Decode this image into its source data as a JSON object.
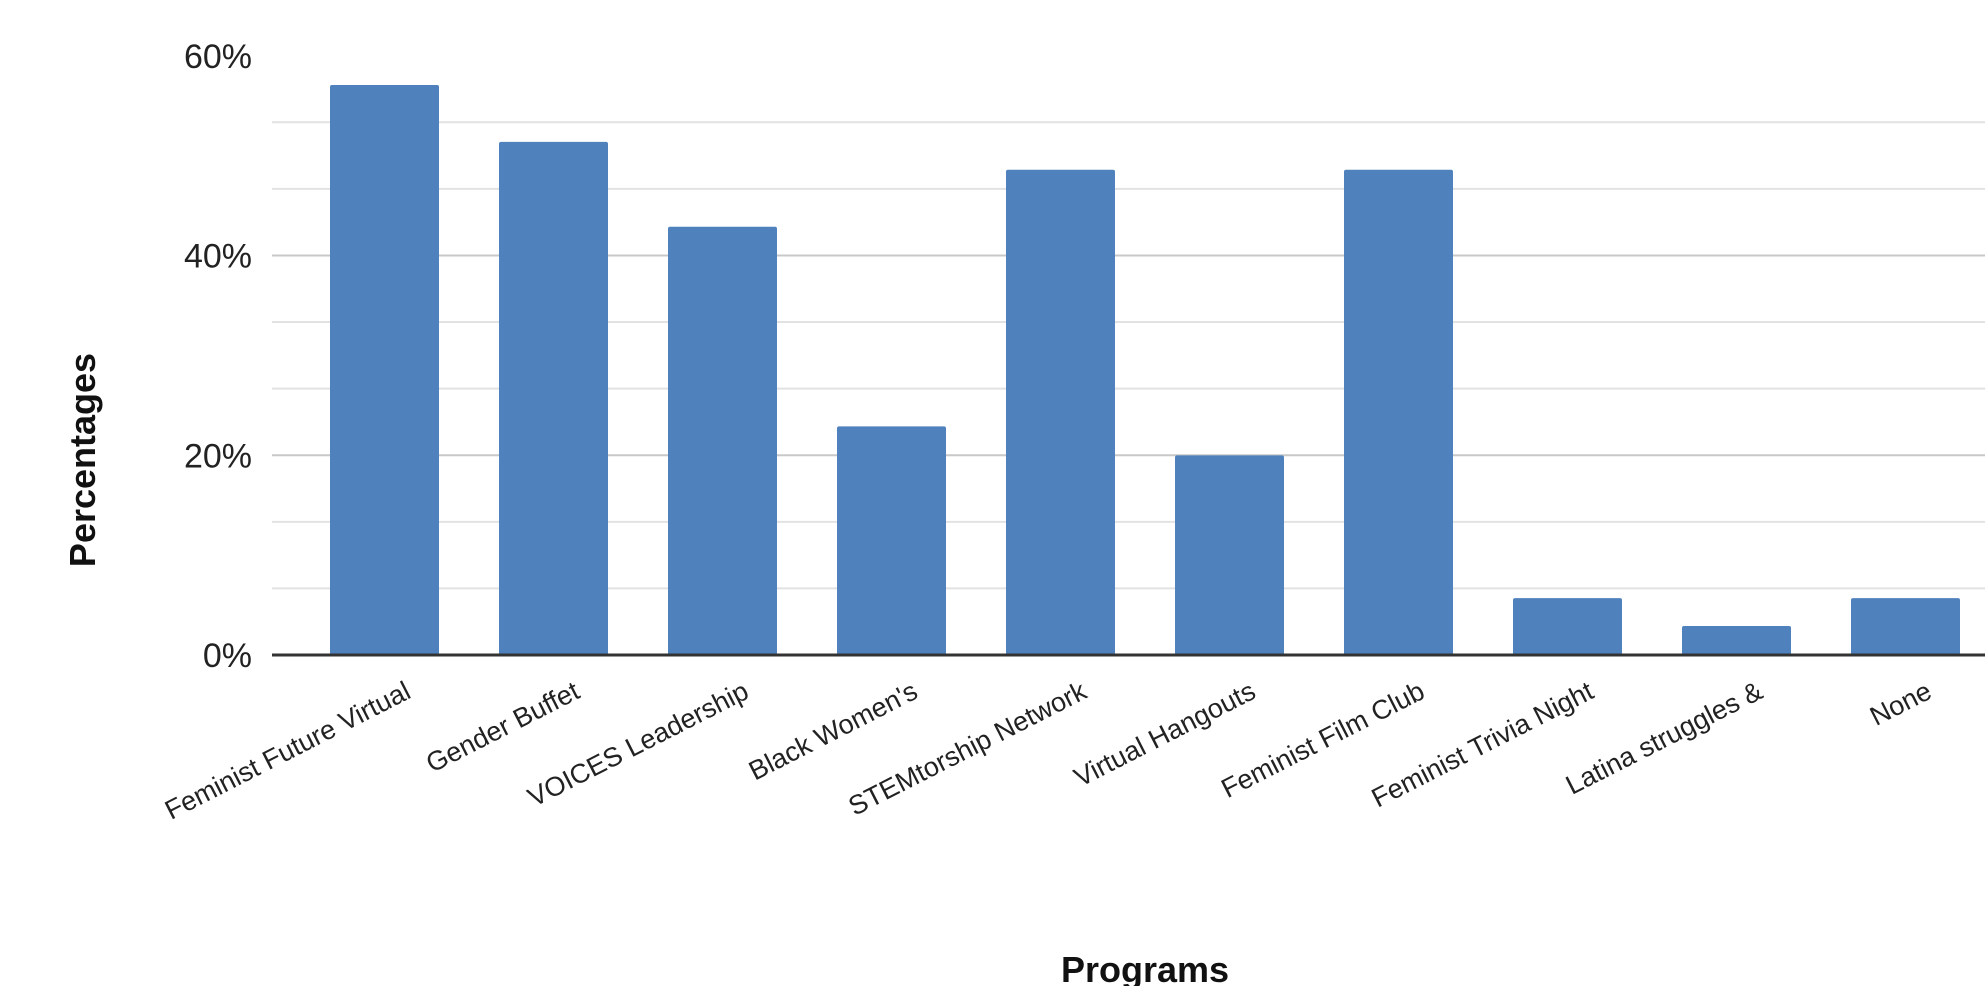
{
  "chart_data": {
    "type": "bar",
    "title": "",
    "xlabel": "Programs",
    "ylabel": "Percentages",
    "ylim": [
      0,
      60
    ],
    "yticks": [
      0,
      20,
      40,
      60
    ],
    "ytick_labels": [
      "0%",
      "20%",
      "40%",
      "60%"
    ],
    "minor_grid_step": 6.67,
    "grid": true,
    "legend": "none",
    "bar_color": "#4f81bd",
    "categories": [
      "Feminist Future Virtual",
      "Gender Buffet",
      "VOICES Leadership",
      "Black Women's",
      "STEMtorship Network",
      "Virtual Hangouts",
      "Feminist Film Club",
      "Feminist Trivia Night",
      "Latina struggles &",
      "None"
    ],
    "values": [
      57.1,
      51.4,
      42.9,
      22.9,
      48.6,
      20.0,
      48.6,
      5.7,
      2.9,
      5.7
    ]
  }
}
